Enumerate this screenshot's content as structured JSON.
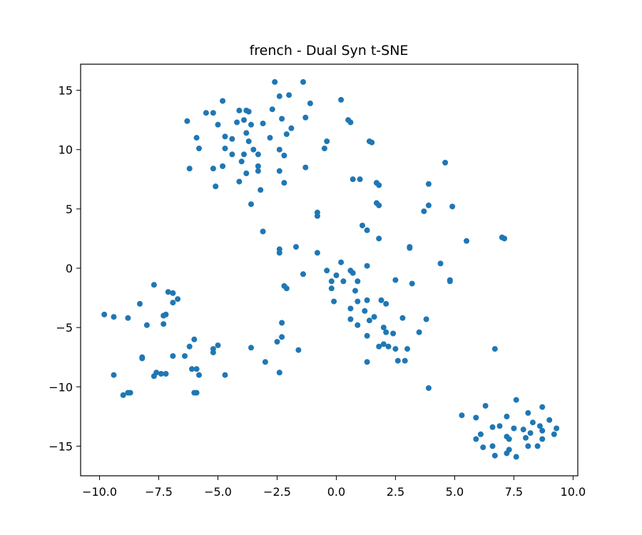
{
  "chart_data": {
    "type": "scatter",
    "title": "french - Dual Syn t-SNE",
    "xlabel": "",
    "ylabel": "",
    "xlim": [
      -10.8,
      10.2
    ],
    "ylim": [
      -17.5,
      17.2
    ],
    "xticks": [
      -10.0,
      -7.5,
      -5.0,
      -2.5,
      0.0,
      2.5,
      5.0,
      7.5,
      10.0
    ],
    "xtick_labels": [
      "−10.0",
      "−7.5",
      "−5.0",
      "−2.5",
      "0.0",
      "2.5",
      "5.0",
      "7.5",
      "10.0"
    ],
    "yticks": [
      -15,
      -10,
      -5,
      0,
      5,
      10,
      15
    ],
    "ytick_labels": [
      "−15",
      "−10",
      "−5",
      "0",
      "5",
      "10",
      "15"
    ],
    "grid": false,
    "color": "#1f77b4",
    "points": [
      [
        -2.6,
        15.7
      ],
      [
        -1.4,
        15.7
      ],
      [
        -2.4,
        14.5
      ],
      [
        -2.0,
        14.6
      ],
      [
        0.2,
        14.2
      ],
      [
        -4.8,
        14.1
      ],
      [
        -4.1,
        13.3
      ],
      [
        -3.8,
        13.3
      ],
      [
        -3.7,
        13.2
      ],
      [
        -5.5,
        13.1
      ],
      [
        -5.2,
        13.1
      ],
      [
        -2.7,
        13.4
      ],
      [
        -1.1,
        13.9
      ],
      [
        -1.3,
        12.7
      ],
      [
        -2.3,
        12.6
      ],
      [
        -3.1,
        12.2
      ],
      [
        -3.6,
        12.1
      ],
      [
        -4.2,
        12.3
      ],
      [
        -3.9,
        12.5
      ],
      [
        -5.0,
        12.1
      ],
      [
        -6.3,
        12.4
      ],
      [
        0.5,
        12.5
      ],
      [
        0.6,
        12.3
      ],
      [
        -1.9,
        11.8
      ],
      [
        -2.1,
        11.3
      ],
      [
        -3.8,
        11.4
      ],
      [
        -4.7,
        11.1
      ],
      [
        -4.4,
        10.9
      ],
      [
        -5.9,
        11.0
      ],
      [
        -2.8,
        11.0
      ],
      [
        -3.7,
        10.7
      ],
      [
        -0.4,
        10.7
      ],
      [
        -0.5,
        10.1
      ],
      [
        -3.5,
        10.0
      ],
      [
        -4.7,
        10.1
      ],
      [
        -5.8,
        10.1
      ],
      [
        -2.4,
        10.0
      ],
      [
        1.4,
        10.7
      ],
      [
        1.5,
        10.6
      ],
      [
        -3.3,
        9.6
      ],
      [
        -3.9,
        9.6
      ],
      [
        -4.4,
        9.6
      ],
      [
        -2.2,
        9.5
      ],
      [
        -4.0,
        9.0
      ],
      [
        -3.3,
        8.6
      ],
      [
        -4.8,
        8.6
      ],
      [
        -5.2,
        8.4
      ],
      [
        -6.2,
        8.4
      ],
      [
        -1.3,
        8.5
      ],
      [
        -3.3,
        8.2
      ],
      [
        -3.8,
        8.0
      ],
      [
        -2.4,
        8.2
      ],
      [
        -4.1,
        7.3
      ],
      [
        -2.2,
        7.2
      ],
      [
        0.7,
        7.5
      ],
      [
        1.0,
        7.5
      ],
      [
        1.7,
        7.2
      ],
      [
        1.8,
        7.0
      ],
      [
        -5.1,
        6.9
      ],
      [
        -3.2,
        6.6
      ],
      [
        3.9,
        7.1
      ],
      [
        4.6,
        8.9
      ],
      [
        -3.6,
        5.4
      ],
      [
        1.7,
        5.5
      ],
      [
        1.8,
        5.3
      ],
      [
        3.9,
        5.3
      ],
      [
        4.9,
        5.2
      ],
      [
        3.7,
        4.8
      ],
      [
        -0.8,
        4.7
      ],
      [
        -0.8,
        4.4
      ],
      [
        1.1,
        3.6
      ],
      [
        1.3,
        3.2
      ],
      [
        -3.1,
        3.1
      ],
      [
        1.8,
        2.5
      ],
      [
        5.5,
        2.3
      ],
      [
        7.0,
        2.6
      ],
      [
        7.1,
        2.5
      ],
      [
        -1.7,
        1.8
      ],
      [
        -2.4,
        1.6
      ],
      [
        -2.4,
        1.3
      ],
      [
        -0.8,
        1.3
      ],
      [
        3.1,
        1.8
      ],
      [
        3.1,
        1.7
      ],
      [
        0.2,
        0.5
      ],
      [
        1.3,
        0.2
      ],
      [
        4.4,
        0.4
      ],
      [
        -1.4,
        -0.5
      ],
      [
        -0.4,
        -0.2
      ],
      [
        0.0,
        -0.6
      ],
      [
        0.7,
        -0.4
      ],
      [
        0.6,
        -0.2
      ],
      [
        -0.2,
        -1.1
      ],
      [
        0.3,
        -1.1
      ],
      [
        0.9,
        -1.1
      ],
      [
        2.5,
        -1.0
      ],
      [
        4.8,
        -1.0
      ],
      [
        4.8,
        -1.1
      ],
      [
        3.2,
        -1.3
      ],
      [
        -2.2,
        -1.5
      ],
      [
        -2.1,
        -1.7
      ],
      [
        -0.2,
        -1.7
      ],
      [
        0.8,
        -1.9
      ],
      [
        1.3,
        -2.7
      ],
      [
        0.9,
        -2.8
      ],
      [
        -0.1,
        -2.8
      ],
      [
        1.9,
        -2.7
      ],
      [
        2.1,
        -3.0
      ],
      [
        0.6,
        -3.4
      ],
      [
        1.2,
        -3.6
      ],
      [
        1.6,
        -4.1
      ],
      [
        2.8,
        -4.2
      ],
      [
        3.8,
        -4.3
      ],
      [
        0.6,
        -4.3
      ],
      [
        1.4,
        -4.4
      ],
      [
        -2.3,
        -4.6
      ],
      [
        0.9,
        -4.8
      ],
      [
        2.0,
        -5.0
      ],
      [
        2.1,
        -5.4
      ],
      [
        2.4,
        -5.5
      ],
      [
        1.3,
        -5.7
      ],
      [
        3.5,
        -5.4
      ],
      [
        -2.3,
        -5.8
      ],
      [
        -2.5,
        -6.2
      ],
      [
        1.8,
        -6.6
      ],
      [
        2.0,
        -6.4
      ],
      [
        2.2,
        -6.6
      ],
      [
        2.5,
        -6.8
      ],
      [
        3.0,
        -6.8
      ],
      [
        -3.6,
        -6.7
      ],
      [
        -1.6,
        -6.9
      ],
      [
        2.6,
        -7.8
      ],
      [
        2.9,
        -7.8
      ],
      [
        1.3,
        -7.9
      ],
      [
        -3.0,
        -7.9
      ],
      [
        -2.4,
        -8.8
      ],
      [
        3.9,
        -10.1
      ],
      [
        6.7,
        -6.8
      ],
      [
        -7.7,
        -1.4
      ],
      [
        -7.1,
        -2.0
      ],
      [
        -6.9,
        -2.1
      ],
      [
        -6.9,
        -2.9
      ],
      [
        -6.7,
        -2.6
      ],
      [
        -8.3,
        -3.0
      ],
      [
        -7.2,
        -3.9
      ],
      [
        -7.3,
        -4.0
      ],
      [
        -9.8,
        -3.9
      ],
      [
        -9.4,
        -4.1
      ],
      [
        -8.8,
        -4.2
      ],
      [
        -8.0,
        -4.8
      ],
      [
        -7.3,
        -4.7
      ],
      [
        -6.0,
        -6.0
      ],
      [
        -6.2,
        -6.6
      ],
      [
        -5.2,
        -6.8
      ],
      [
        -5.2,
        -7.1
      ],
      [
        -5.0,
        -6.5
      ],
      [
        -6.4,
        -7.4
      ],
      [
        -6.9,
        -7.4
      ],
      [
        -8.2,
        -7.5
      ],
      [
        -8.2,
        -7.6
      ],
      [
        -6.1,
        -8.5
      ],
      [
        -5.9,
        -8.5
      ],
      [
        -7.6,
        -8.8
      ],
      [
        -7.4,
        -8.9
      ],
      [
        -7.2,
        -8.9
      ],
      [
        -7.7,
        -9.1
      ],
      [
        -5.8,
        -9.0
      ],
      [
        -4.7,
        -9.0
      ],
      [
        -9.4,
        -9.0
      ],
      [
        -6.0,
        -10.5
      ],
      [
        -5.9,
        -10.5
      ],
      [
        -8.8,
        -10.5
      ],
      [
        -8.7,
        -10.5
      ],
      [
        -9.0,
        -10.7
      ],
      [
        7.6,
        -11.1
      ],
      [
        6.3,
        -11.6
      ],
      [
        8.7,
        -11.7
      ],
      [
        8.1,
        -12.2
      ],
      [
        7.2,
        -12.5
      ],
      [
        5.3,
        -12.4
      ],
      [
        5.9,
        -12.6
      ],
      [
        8.3,
        -13.0
      ],
      [
        9.0,
        -12.8
      ],
      [
        6.6,
        -13.4
      ],
      [
        6.9,
        -13.3
      ],
      [
        7.5,
        -13.5
      ],
      [
        7.9,
        -13.6
      ],
      [
        8.6,
        -13.3
      ],
      [
        9.3,
        -13.5
      ],
      [
        8.2,
        -13.9
      ],
      [
        8.7,
        -13.7
      ],
      [
        6.1,
        -14.0
      ],
      [
        7.2,
        -14.2
      ],
      [
        7.3,
        -14.4
      ],
      [
        8.0,
        -14.3
      ],
      [
        8.7,
        -14.4
      ],
      [
        9.2,
        -14.0
      ],
      [
        5.9,
        -14.4
      ],
      [
        6.2,
        -15.1
      ],
      [
        6.6,
        -15.0
      ],
      [
        7.3,
        -15.3
      ],
      [
        8.1,
        -15.0
      ],
      [
        8.5,
        -15.0
      ],
      [
        7.2,
        -15.6
      ],
      [
        6.7,
        -15.8
      ],
      [
        7.6,
        -15.9
      ]
    ]
  }
}
